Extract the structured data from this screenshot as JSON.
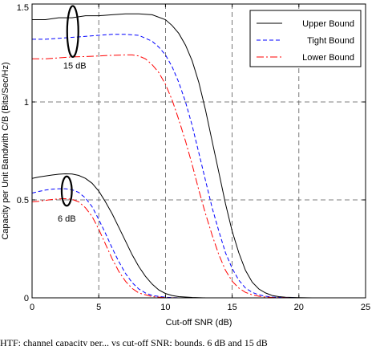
{
  "chart_data": {
    "type": "line",
    "title": "",
    "xlabel": "Cut-off SNR (dB)",
    "ylabel": "Capacity per Unit Bandwith C/B (Bits/Sec/Hz)",
    "xlim": [
      0,
      25
    ],
    "ylim": [
      0,
      1.5
    ],
    "xticks": [
      "0",
      "5",
      "10",
      "15",
      "20",
      "25"
    ],
    "yticks": [
      "0",
      "0.5",
      "1",
      "1.5"
    ],
    "grid": "dashed",
    "legend_position": "top-right",
    "series": [
      {
        "name": "Upper Bound",
        "group": "15 dB",
        "color": "#000000",
        "style": "solid",
        "x": [
          0,
          1,
          2,
          3,
          4,
          5,
          6,
          7,
          8,
          9,
          10,
          10.5,
          11,
          11.5,
          12,
          12.5,
          13,
          13.5,
          14,
          14.5,
          15,
          15.5,
          16,
          16.5,
          17,
          17.5,
          18,
          18.5,
          19,
          20,
          21,
          22,
          23
        ],
        "y": [
          1.42,
          1.42,
          1.43,
          1.43,
          1.44,
          1.44,
          1.445,
          1.45,
          1.45,
          1.445,
          1.42,
          1.39,
          1.35,
          1.29,
          1.21,
          1.1,
          0.96,
          0.8,
          0.64,
          0.48,
          0.34,
          0.23,
          0.14,
          0.08,
          0.045,
          0.025,
          0.012,
          0.006,
          0.003,
          0.001,
          0,
          0,
          0
        ]
      },
      {
        "name": "Tight Bound",
        "group": "15 dB",
        "color": "#0000ff",
        "style": "dashed",
        "x": [
          0,
          1,
          2,
          3,
          4,
          5,
          6,
          7,
          8,
          9,
          9.5,
          10,
          10.5,
          11,
          11.5,
          12,
          12.5,
          13,
          13.5,
          14,
          14.5,
          15,
          15.5,
          16,
          16.5,
          17,
          17.5,
          18,
          19,
          20,
          21,
          22,
          23
        ],
        "y": [
          1.32,
          1.32,
          1.325,
          1.33,
          1.335,
          1.34,
          1.345,
          1.345,
          1.34,
          1.31,
          1.28,
          1.24,
          1.18,
          1.1,
          1.0,
          0.88,
          0.74,
          0.6,
          0.46,
          0.34,
          0.23,
          0.15,
          0.09,
          0.05,
          0.028,
          0.015,
          0.008,
          0.004,
          0.001,
          0,
          0,
          0,
          0
        ]
      },
      {
        "name": "Lower Bound",
        "group": "15 dB",
        "color": "#ff0000",
        "style": "dashdot",
        "x": [
          0,
          1,
          2,
          3,
          4,
          5,
          6,
          7,
          7.5,
          8,
          8.5,
          9,
          9.5,
          10,
          10.5,
          11,
          11.5,
          12,
          12.5,
          13,
          13.5,
          14,
          14.5,
          15,
          15.5,
          16,
          16.5,
          17,
          17.5,
          18,
          19,
          20,
          21,
          22,
          23
        ],
        "y": [
          1.22,
          1.22,
          1.225,
          1.23,
          1.232,
          1.235,
          1.238,
          1.24,
          1.24,
          1.235,
          1.22,
          1.19,
          1.15,
          1.09,
          1.01,
          0.91,
          0.8,
          0.68,
          0.55,
          0.43,
          0.32,
          0.22,
          0.14,
          0.085,
          0.05,
          0.028,
          0.015,
          0.008,
          0.004,
          0.002,
          0.0005,
          0,
          0,
          0,
          0
        ]
      },
      {
        "name": "Upper Bound",
        "group": "6 dB",
        "color": "#000000",
        "style": "solid",
        "x": [
          0,
          0.5,
          1,
          1.5,
          2,
          2.5,
          3,
          3.5,
          4,
          4.5,
          5,
          5.5,
          6,
          6.5,
          7,
          7.5,
          8,
          8.5,
          9,
          9.5,
          10,
          10.5,
          11,
          12,
          13,
          14,
          15,
          16,
          17,
          18,
          19,
          20,
          21,
          22,
          23
        ],
        "y": [
          0.61,
          0.617,
          0.622,
          0.627,
          0.631,
          0.633,
          0.632,
          0.625,
          0.61,
          0.585,
          0.545,
          0.49,
          0.43,
          0.36,
          0.29,
          0.22,
          0.16,
          0.11,
          0.07,
          0.04,
          0.022,
          0.012,
          0.006,
          0.002,
          0,
          0,
          0,
          0,
          0,
          0,
          0,
          0,
          0,
          0,
          0
        ]
      },
      {
        "name": "Tight Bound",
        "group": "6 dB",
        "color": "#0000ff",
        "style": "dashed",
        "x": [
          0,
          0.5,
          1,
          1.5,
          2,
          2.5,
          3,
          3.5,
          4,
          4.5,
          5,
          5.5,
          6,
          6.5,
          7,
          7.5,
          8,
          8.5,
          9,
          10,
          11,
          12,
          13,
          14,
          15,
          16,
          17,
          18,
          19,
          20,
          21,
          22,
          23
        ],
        "y": [
          0.535,
          0.543,
          0.55,
          0.555,
          0.557,
          0.557,
          0.552,
          0.538,
          0.51,
          0.465,
          0.4,
          0.33,
          0.255,
          0.185,
          0.125,
          0.078,
          0.045,
          0.025,
          0.012,
          0.003,
          0,
          0,
          0,
          0,
          0,
          0,
          0,
          0,
          0,
          0,
          0,
          0,
          0
        ]
      },
      {
        "name": "Lower Bound",
        "group": "6 dB",
        "color": "#ff0000",
        "style": "dashdot",
        "x": [
          0,
          0.5,
          1,
          1.5,
          2,
          2.5,
          3,
          3.5,
          4,
          4.5,
          5,
          5.5,
          6,
          6.5,
          7,
          7.5,
          8,
          9,
          10,
          11,
          12,
          13,
          14,
          15,
          16,
          17,
          18,
          19,
          20,
          21,
          22,
          23
        ],
        "y": [
          0.49,
          0.493,
          0.498,
          0.502,
          0.505,
          0.506,
          0.503,
          0.49,
          0.46,
          0.415,
          0.35,
          0.275,
          0.2,
          0.135,
          0.085,
          0.048,
          0.025,
          0.006,
          0.001,
          0,
          0,
          0,
          0,
          0,
          0,
          0,
          0,
          0,
          0,
          0,
          0,
          0
        ]
      }
    ],
    "legend": [
      "Upper Bound",
      "Tight Bound",
      "Lower Bound"
    ],
    "annotations": [
      {
        "text": "15 dB",
        "x": 3.2,
        "y": 1.17
      },
      {
        "text": "6 dB",
        "x": 2.6,
        "y": 0.39
      }
    ],
    "ellipses": [
      {
        "label": "15 dB",
        "cx": 3.05,
        "cy": 1.36,
        "rx": 0.42,
        "ry": 0.13
      },
      {
        "label": "6 dB",
        "cx": 2.6,
        "cy": 0.545,
        "rx": 0.38,
        "ry": 0.075
      }
    ]
  },
  "caption": "HTF: channel capacity per... vs cut-off SNR; bounds, 6 dB and 15 dB"
}
